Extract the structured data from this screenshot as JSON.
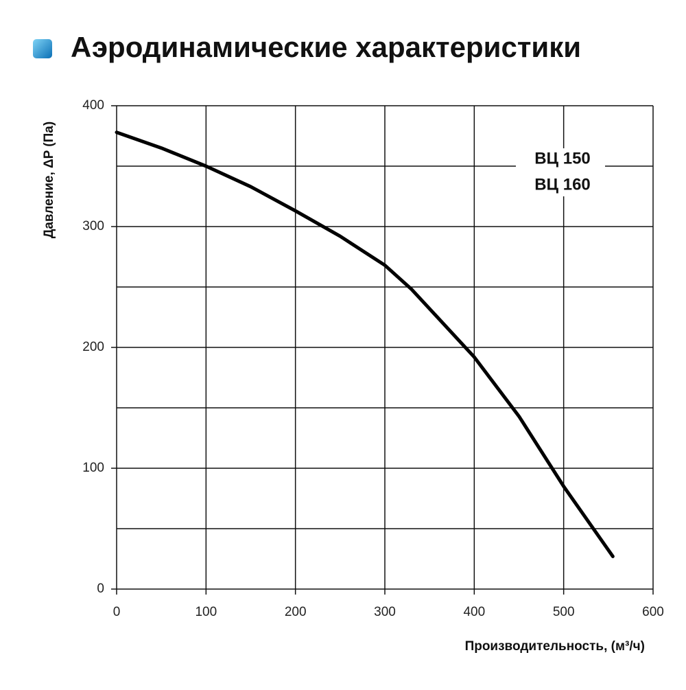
{
  "chart_data": {
    "type": "line",
    "title": "Аэродинамические характеристики",
    "x_label": "Производительность, (м³/ч)",
    "y_label": "Давление, ΔP (Па)",
    "annotations": [
      "ВЦ 150",
      "ВЦ 160"
    ],
    "x": [
      0,
      50,
      100,
      150,
      200,
      250,
      300,
      330,
      350,
      400,
      450,
      500,
      555
    ],
    "series": [
      {
        "color": "#000000",
        "values": [
          378,
          365,
          350,
          333,
          313,
          292,
          268,
          248,
          232,
          192,
          143,
          85,
          27
        ]
      }
    ],
    "xlim": [
      0,
      600
    ],
    "xticks": [
      0,
      100,
      200,
      300,
      400,
      500,
      600
    ],
    "ylim": [
      0,
      400
    ],
    "yticks": [
      0,
      100,
      200,
      300,
      400
    ],
    "minor_yticks": [
      50,
      150,
      250,
      350
    ],
    "grid": true
  }
}
